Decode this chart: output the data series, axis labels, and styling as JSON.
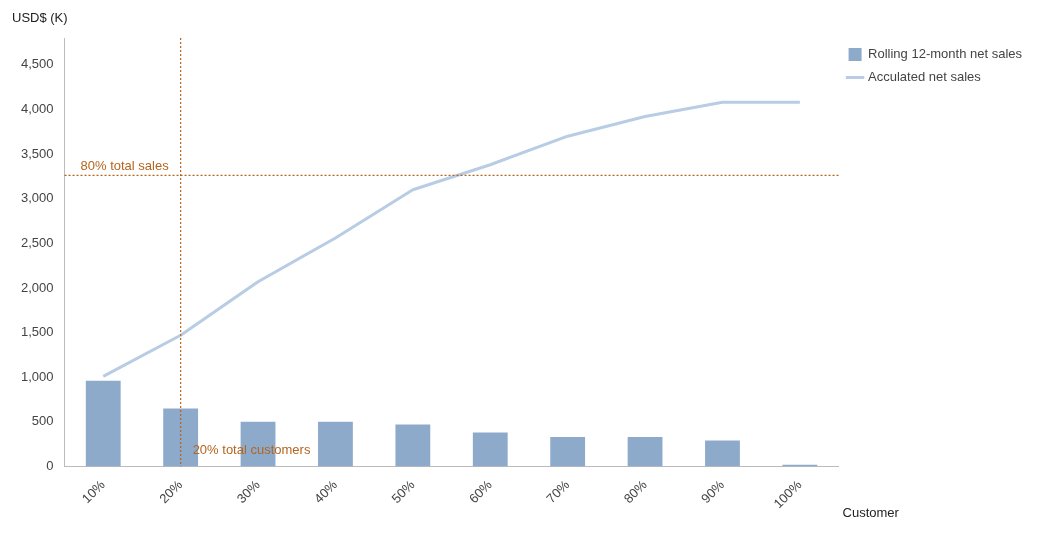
{
  "chart_data": {
    "type": "bar",
    "xlabel": "Customer",
    "ylabel": "USD$ (K)",
    "categories": [
      "10%",
      "20%",
      "30%",
      "40%",
      "50%",
      "60%",
      "70%",
      "80%",
      "90%",
      "100%"
    ],
    "series": [
      {
        "name": "Rolling 12-month net sales",
        "color": "#8eaacb",
        "values": [
          960,
          650,
          500,
          500,
          470,
          380,
          330,
          330,
          290,
          20
        ]
      },
      {
        "name": "Acculated net sales",
        "type": "line",
        "color": "#b8cce4",
        "values": [
          1010,
          1470,
          2070,
          2560,
          3100,
          3380,
          3700,
          3920,
          4080,
          4080
        ]
      }
    ],
    "ylim": [
      0,
      4800
    ],
    "yticks": [
      0,
      500,
      {
        "value": 1000,
        "label": "1,000"
      },
      {
        "value": 1500,
        "label": "1,500"
      },
      {
        "value": 2000,
        "label": "2,000"
      },
      {
        "value": 2500,
        "label": "2,500"
      },
      {
        "value": 3000,
        "label": "3,000"
      },
      {
        "value": 3500,
        "label": "3,500"
      },
      {
        "value": 4000,
        "label": "4,000"
      },
      {
        "value": 4500,
        "label": "4,500"
      }
    ],
    "ref_lines": [
      {
        "axis": "y",
        "value": 3260,
        "label": "80% total sales",
        "color": "#b5651d",
        "line_style": "dotted"
      },
      {
        "axis": "x",
        "value": "20%",
        "label": "20% total customers",
        "color": "#b5651d",
        "line_style": "dotted"
      }
    ],
    "legend": "top right",
    "marker": "none",
    "grid": false
  }
}
